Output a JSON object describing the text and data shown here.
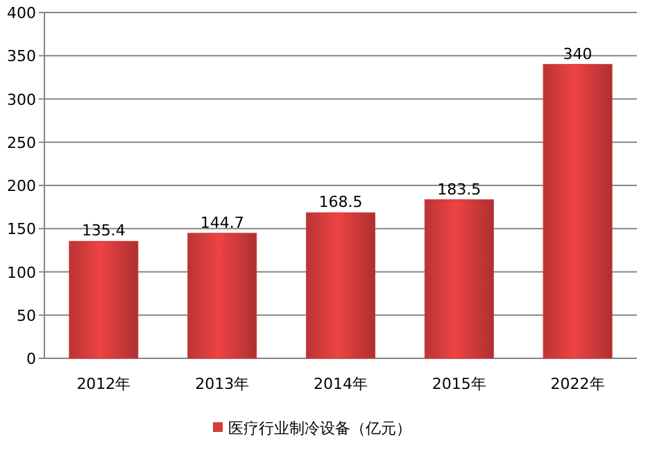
{
  "chart_data": {
    "type": "bar",
    "categories": [
      "2012年",
      "2013年",
      "2014年",
      "2015年",
      "2022年"
    ],
    "series": [
      {
        "name": "医疗行业制冷设备（亿元）",
        "color": "#d63c3c",
        "values": [
          135.4,
          144.7,
          168.5,
          183.5,
          340
        ]
      }
    ],
    "ylim": [
      0,
      400
    ],
    "yticks": [
      0,
      50,
      100,
      150,
      200,
      250,
      300,
      350,
      400
    ],
    "grid": "y",
    "legend": "bottom",
    "data_labels": true
  }
}
